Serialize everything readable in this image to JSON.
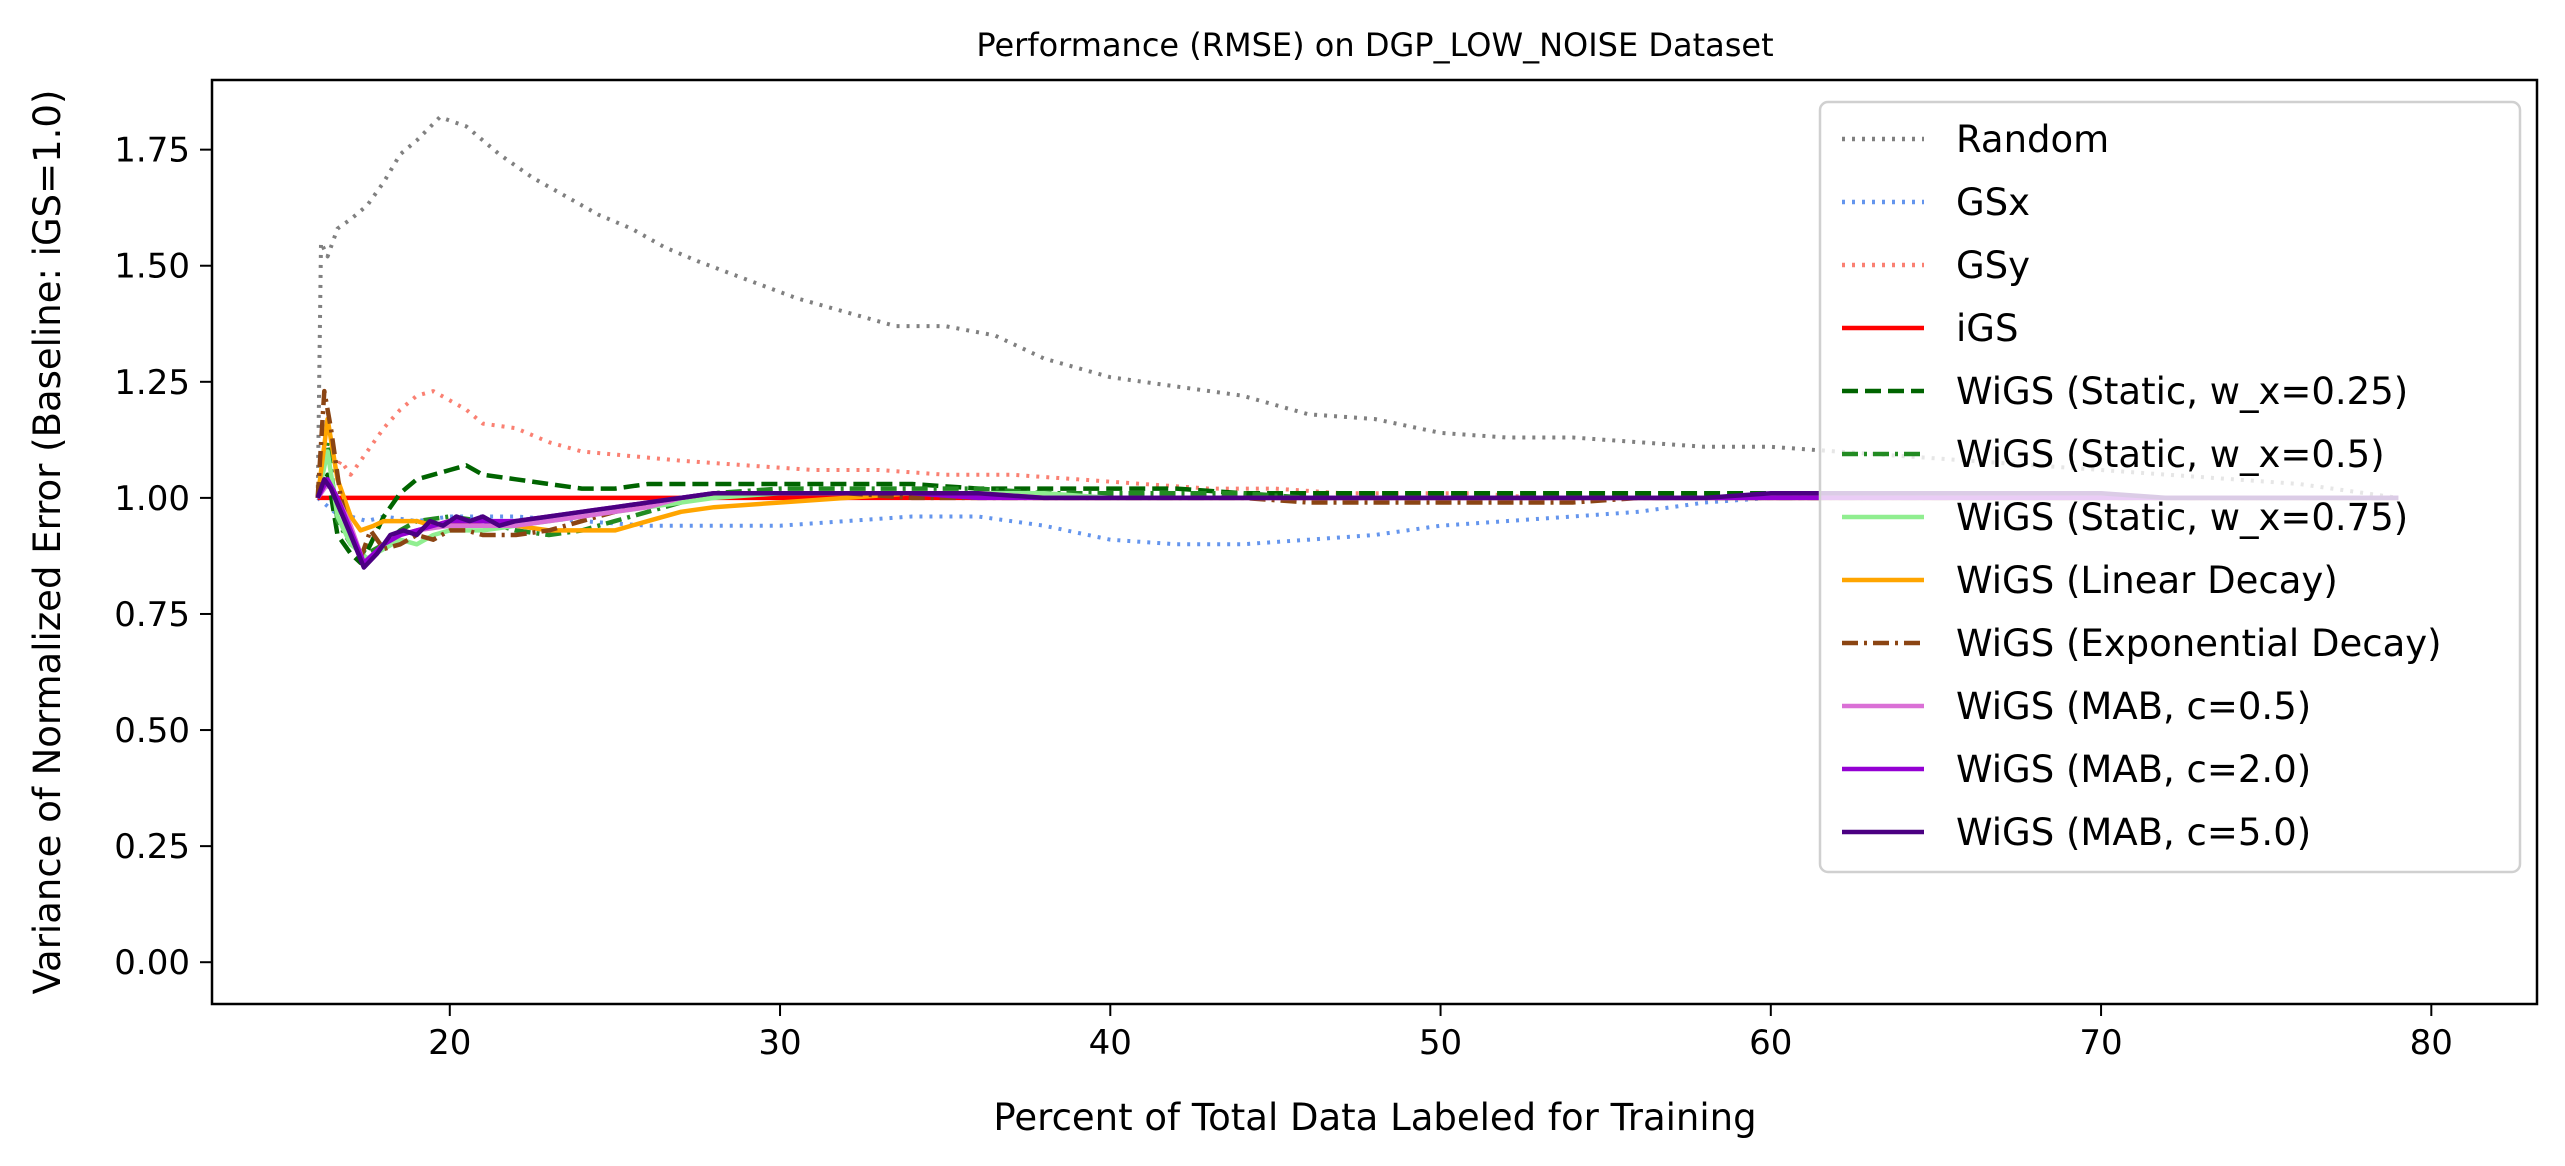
{
  "chart_data": {
    "type": "line",
    "title": "Performance (RMSE) on DGP_LOW_NOISE Dataset",
    "xlabel": "Percent of Total Data Labeled for Training",
    "ylabel": "Variance of Normalized Error (Baseline: iGS=1.0)",
    "xlim": [
      12.8,
      83.2
    ],
    "ylim": [
      -0.09,
      1.9
    ],
    "xticks": [
      20,
      30,
      40,
      50,
      60,
      70,
      80
    ],
    "yticks": [
      0.0,
      0.25,
      0.5,
      0.75,
      1.0,
      1.25,
      1.5,
      1.75
    ],
    "xtick_labels": [
      "20",
      "30",
      "40",
      "50",
      "60",
      "70",
      "80"
    ],
    "ytick_labels": [
      "0.00",
      "0.25",
      "0.50",
      "0.75",
      "1.00",
      "1.25",
      "1.50",
      "1.75"
    ],
    "grid": false,
    "legend_position": "top-right",
    "series": [
      {
        "name": "Random",
        "color": "#808080",
        "dash": "dotted",
        "x": [
          16.0,
          16.1,
          16.3,
          16.6,
          17.0,
          17.5,
          18.0,
          18.5,
          19.0,
          19.7,
          20.5,
          21.5,
          22.5,
          23.5,
          24.5,
          25.5,
          26.5,
          27.5,
          29,
          30.5,
          32,
          33.5,
          35,
          36.5,
          38,
          40,
          42,
          44,
          46,
          48,
          50,
          52,
          54,
          56,
          58,
          60,
          62,
          64,
          66,
          68,
          70,
          72,
          74,
          76,
          78,
          79
        ],
        "y": [
          1.0,
          1.55,
          1.52,
          1.58,
          1.6,
          1.63,
          1.68,
          1.74,
          1.77,
          1.82,
          1.8,
          1.74,
          1.69,
          1.65,
          1.61,
          1.58,
          1.54,
          1.51,
          1.47,
          1.43,
          1.4,
          1.37,
          1.37,
          1.35,
          1.3,
          1.26,
          1.24,
          1.22,
          1.18,
          1.17,
          1.14,
          1.13,
          1.13,
          1.12,
          1.11,
          1.11,
          1.1,
          1.09,
          1.08,
          1.07,
          1.06,
          1.05,
          1.04,
          1.03,
          1.01,
          1.0
        ]
      },
      {
        "name": "GSx",
        "color": "#6495ED",
        "dash": "dotted",
        "x": [
          16.0,
          16.5,
          17.0,
          17.5,
          18.0,
          19.0,
          20.0,
          22,
          24,
          26,
          28,
          30,
          32,
          34,
          36,
          38,
          40,
          42,
          44,
          46,
          48,
          50,
          52,
          54,
          56,
          58,
          60,
          62,
          64,
          66,
          68,
          70,
          72,
          74,
          76,
          78,
          79
        ],
        "y": [
          1.0,
          0.97,
          0.96,
          0.95,
          0.96,
          0.95,
          0.96,
          0.96,
          0.95,
          0.94,
          0.94,
          0.94,
          0.95,
          0.96,
          0.96,
          0.94,
          0.91,
          0.9,
          0.9,
          0.91,
          0.92,
          0.94,
          0.95,
          0.96,
          0.97,
          0.99,
          1.0,
          1.0,
          1.0,
          1.0,
          1.0,
          1.0,
          1.0,
          1.0,
          1.0,
          1.0,
          1.0
        ]
      },
      {
        "name": "GSy",
        "color": "#FA8072",
        "dash": "dotted",
        "x": [
          16.0,
          16.3,
          16.7,
          17.0,
          17.5,
          18.0,
          18.5,
          19.0,
          19.5,
          20.0,
          20.5,
          21.0,
          22.0,
          23.0,
          24.0,
          25.5,
          27,
          29,
          31,
          33,
          35,
          37,
          39,
          41,
          43,
          45,
          47,
          49,
          51,
          53,
          55,
          57,
          59,
          61,
          63,
          65,
          67,
          69,
          71,
          73,
          75,
          77,
          79
        ],
        "y": [
          1.0,
          1.03,
          1.08,
          1.05,
          1.1,
          1.15,
          1.19,
          1.22,
          1.23,
          1.21,
          1.19,
          1.16,
          1.15,
          1.12,
          1.1,
          1.09,
          1.08,
          1.07,
          1.06,
          1.06,
          1.05,
          1.05,
          1.04,
          1.03,
          1.02,
          1.02,
          1.01,
          1.01,
          1.01,
          1.0,
          1.0,
          1.0,
          1.0,
          1.0,
          1.0,
          1.0,
          1.0,
          1.0,
          1.0,
          1.0,
          1.0,
          1.0,
          1.0
        ]
      },
      {
        "name": "iGS",
        "color": "#FF0000",
        "dash": "solid",
        "x": [
          16.0,
          79.0
        ],
        "y": [
          1.0,
          1.0
        ]
      },
      {
        "name": "WiGS (Static, w_x=0.25)",
        "color": "#006400",
        "dash": "dashed",
        "x": [
          16.0,
          16.3,
          16.6,
          17.0,
          17.3,
          17.6,
          18.0,
          18.5,
          19.0,
          19.5,
          20.0,
          20.5,
          21.0,
          22.0,
          23.0,
          24.0,
          25.0,
          26.0,
          28,
          30,
          32,
          34,
          36,
          38,
          40,
          42,
          44,
          46,
          48,
          50,
          52,
          54,
          56,
          58,
          60,
          62,
          64,
          66,
          68,
          70,
          72,
          74,
          76,
          78,
          79
        ],
        "y": [
          1.0,
          1.05,
          0.92,
          0.88,
          0.86,
          0.9,
          0.96,
          1.01,
          1.04,
          1.05,
          1.06,
          1.07,
          1.05,
          1.04,
          1.03,
          1.02,
          1.02,
          1.03,
          1.03,
          1.03,
          1.03,
          1.03,
          1.02,
          1.02,
          1.02,
          1.02,
          1.01,
          1.01,
          1.01,
          1.01,
          1.01,
          1.01,
          1.01,
          1.01,
          1.01,
          1.01,
          1.01,
          1.0,
          1.0,
          1.0,
          1.0,
          1.0,
          1.0,
          1.0,
          1.0
        ]
      },
      {
        "name": "WiGS (Static, w_x=0.5)",
        "color": "#228B22",
        "dash": "dashdot",
        "x": [
          16.0,
          16.3,
          16.6,
          17.0,
          17.5,
          18.0,
          18.5,
          19.0,
          20.0,
          21.0,
          22.0,
          23.0,
          24.0,
          25.0,
          26.0,
          27.0,
          28,
          30,
          32,
          34,
          36,
          38,
          40,
          42,
          44,
          46,
          48,
          50,
          52,
          54,
          56,
          58,
          60,
          62,
          64,
          66,
          68,
          70,
          72,
          74,
          76,
          78,
          79
        ],
        "y": [
          1.0,
          1.12,
          0.95,
          0.9,
          0.88,
          0.9,
          0.93,
          0.95,
          0.96,
          0.95,
          0.93,
          0.92,
          0.93,
          0.95,
          0.97,
          0.99,
          1.01,
          1.02,
          1.02,
          1.02,
          1.02,
          1.01,
          1.01,
          1.01,
          1.01,
          1.0,
          1.0,
          1.0,
          1.0,
          1.0,
          1.0,
          1.0,
          1.0,
          1.0,
          1.0,
          1.0,
          1.0,
          1.0,
          1.0,
          1.0,
          1.0,
          1.0,
          1.0
        ]
      },
      {
        "name": "WiGS (Static, w_x=0.75)",
        "color": "#90EE90",
        "dash": "solid",
        "x": [
          16.0,
          16.3,
          16.6,
          17.0,
          17.5,
          18.0,
          18.5,
          19.0,
          19.5,
          20.0,
          21.0,
          22.0,
          23.0,
          24.0,
          25.0,
          26.0,
          27.0,
          28,
          30,
          32,
          34,
          36,
          38,
          40,
          42,
          44,
          46,
          48,
          50,
          52,
          54,
          56,
          58,
          60,
          62,
          64,
          66,
          68,
          70,
          72,
          74,
          76,
          78,
          79
        ],
        "y": [
          1.0,
          1.1,
          0.96,
          0.9,
          0.87,
          0.89,
          0.91,
          0.9,
          0.92,
          0.93,
          0.93,
          0.94,
          0.95,
          0.96,
          0.97,
          0.98,
          0.99,
          1.0,
          1.01,
          1.01,
          1.01,
          1.01,
          1.01,
          1.0,
          1.0,
          1.0,
          1.0,
          1.0,
          1.0,
          1.0,
          1.0,
          1.0,
          1.0,
          1.0,
          1.0,
          1.0,
          1.0,
          1.0,
          1.0,
          1.0,
          1.0,
          1.0,
          1.0,
          1.0
        ]
      },
      {
        "name": "WiGS (Linear Decay)",
        "color": "#FFA500",
        "dash": "solid",
        "x": [
          16.0,
          16.3,
          16.6,
          17.0,
          17.3,
          17.7,
          18.0,
          18.5,
          19.0,
          19.5,
          20.0,
          21.0,
          22.0,
          23.0,
          24.0,
          25.0,
          26.0,
          27.0,
          28,
          30,
          32,
          34,
          36,
          38,
          40,
          42,
          44,
          46,
          48,
          50,
          52,
          54,
          56,
          58,
          60,
          62,
          64,
          66,
          68,
          70,
          72,
          74,
          76,
          78,
          79
        ],
        "y": [
          1.0,
          1.17,
          1.04,
          0.96,
          0.93,
          0.94,
          0.95,
          0.95,
          0.95,
          0.94,
          0.95,
          0.94,
          0.94,
          0.93,
          0.93,
          0.93,
          0.95,
          0.97,
          0.98,
          0.99,
          1.0,
          1.01,
          1.01,
          1.0,
          1.0,
          1.0,
          1.0,
          1.0,
          1.0,
          1.0,
          1.0,
          1.0,
          1.0,
          1.0,
          1.0,
          1.0,
          1.0,
          1.0,
          1.0,
          1.0,
          1.0,
          1.0,
          1.0,
          1.0,
          1.0
        ]
      },
      {
        "name": "WiGS (Exponential Decay)",
        "color": "#8B4513",
        "dash": "dashdot",
        "x": [
          16.0,
          16.2,
          16.4,
          16.7,
          17.0,
          17.3,
          17.6,
          18.0,
          18.5,
          19.0,
          19.5,
          20.0,
          20.5,
          21.0,
          22.0,
          23.0,
          24.0,
          25.0,
          26.0,
          27.0,
          28,
          30,
          32,
          34,
          36,
          38,
          40,
          42,
          44,
          46,
          48,
          50,
          52,
          54,
          56,
          58,
          60,
          62,
          64,
          66,
          68,
          70,
          72,
          74,
          76,
          78,
          79
        ],
        "y": [
          1.0,
          1.23,
          1.15,
          1.0,
          0.92,
          0.87,
          0.93,
          0.89,
          0.9,
          0.92,
          0.91,
          0.93,
          0.93,
          0.92,
          0.92,
          0.93,
          0.95,
          0.97,
          0.99,
          1.0,
          1.01,
          1.01,
          1.01,
          1.0,
          1.0,
          1.0,
          1.0,
          1.0,
          1.0,
          0.99,
          0.99,
          0.99,
          0.99,
          0.99,
          1.0,
          1.0,
          1.0,
          1.0,
          1.0,
          1.0,
          1.0,
          1.0,
          1.0,
          1.0,
          1.0,
          1.0,
          1.0
        ]
      },
      {
        "name": "WiGS (MAB, c=0.5)",
        "color": "#DA70D6",
        "dash": "solid",
        "x": [
          16.0,
          16.3,
          16.6,
          17.0,
          17.4,
          18.0,
          18.5,
          19.0,
          20.0,
          21.0,
          22.0,
          23.0,
          24.0,
          25.0,
          26.0,
          27.0,
          28,
          30,
          32,
          34,
          36,
          38,
          40,
          42,
          44,
          46,
          48,
          50,
          52,
          54,
          56,
          58,
          60,
          62,
          64,
          66,
          68,
          70,
          72,
          74,
          76,
          78,
          79
        ],
        "y": [
          1.0,
          1.03,
          1.0,
          0.94,
          0.86,
          0.9,
          0.92,
          0.93,
          0.94,
          0.94,
          0.94,
          0.95,
          0.96,
          0.97,
          0.98,
          1.0,
          1.01,
          1.01,
          1.01,
          1.01,
          1.01,
          1.0,
          1.0,
          1.0,
          1.0,
          1.0,
          1.0,
          1.0,
          1.0,
          1.0,
          1.0,
          1.0,
          1.0,
          1.0,
          1.0,
          1.0,
          1.0,
          1.0,
          1.0,
          1.0,
          1.0,
          1.0,
          1.0
        ]
      },
      {
        "name": "WiGS (MAB, c=2.0)",
        "color": "#9400D3",
        "dash": "solid",
        "x": [
          16.0,
          16.3,
          16.6,
          17.0,
          17.4,
          18.0,
          18.5,
          19.0,
          20.0,
          21.0,
          22.0,
          23.0,
          24.0,
          25.0,
          26.0,
          27.0,
          28,
          30,
          32,
          34,
          36,
          38,
          40,
          42,
          44,
          46,
          48,
          50,
          52,
          54,
          56,
          58,
          60,
          62,
          64,
          66,
          68,
          70,
          72,
          74,
          76,
          78,
          79
        ],
        "y": [
          1.0,
          1.04,
          1.0,
          0.93,
          0.86,
          0.9,
          0.92,
          0.93,
          0.95,
          0.95,
          0.95,
          0.96,
          0.97,
          0.98,
          0.99,
          1.0,
          1.01,
          1.01,
          1.01,
          1.01,
          1.0,
          1.0,
          1.0,
          1.0,
          1.0,
          1.0,
          1.0,
          1.0,
          1.0,
          1.0,
          1.0,
          1.0,
          1.0,
          1.0,
          1.0,
          1.0,
          1.0,
          1.0,
          1.0,
          1.0,
          1.0,
          1.0,
          1.0
        ]
      },
      {
        "name": "WiGS (MAB, c=5.0)",
        "color": "#4B0082",
        "dash": "solid",
        "x": [
          16.0,
          16.2,
          16.4,
          16.7,
          17.0,
          17.4,
          17.8,
          18.2,
          18.6,
          19.0,
          19.4,
          19.8,
          20.2,
          20.6,
          21.0,
          21.5,
          22.0,
          23.0,
          24.0,
          25.0,
          26.0,
          27.0,
          28,
          30,
          32,
          34,
          36,
          38,
          40,
          42,
          44,
          46,
          48,
          50,
          52,
          54,
          56,
          58,
          60,
          62,
          64,
          66,
          68,
          70,
          72,
          74,
          76,
          78,
          79
        ],
        "y": [
          1.0,
          1.04,
          1.02,
          0.97,
          0.92,
          0.85,
          0.88,
          0.92,
          0.93,
          0.92,
          0.95,
          0.94,
          0.96,
          0.95,
          0.96,
          0.94,
          0.95,
          0.96,
          0.97,
          0.98,
          0.99,
          1.0,
          1.01,
          1.01,
          1.01,
          1.01,
          1.01,
          1.0,
          1.0,
          1.0,
          1.0,
          1.0,
          1.0,
          1.0,
          1.0,
          1.0,
          1.0,
          1.0,
          1.01,
          1.01,
          1.01,
          1.01,
          1.01,
          1.01,
          1.0,
          1.0,
          1.0,
          1.0,
          1.0
        ]
      }
    ]
  }
}
